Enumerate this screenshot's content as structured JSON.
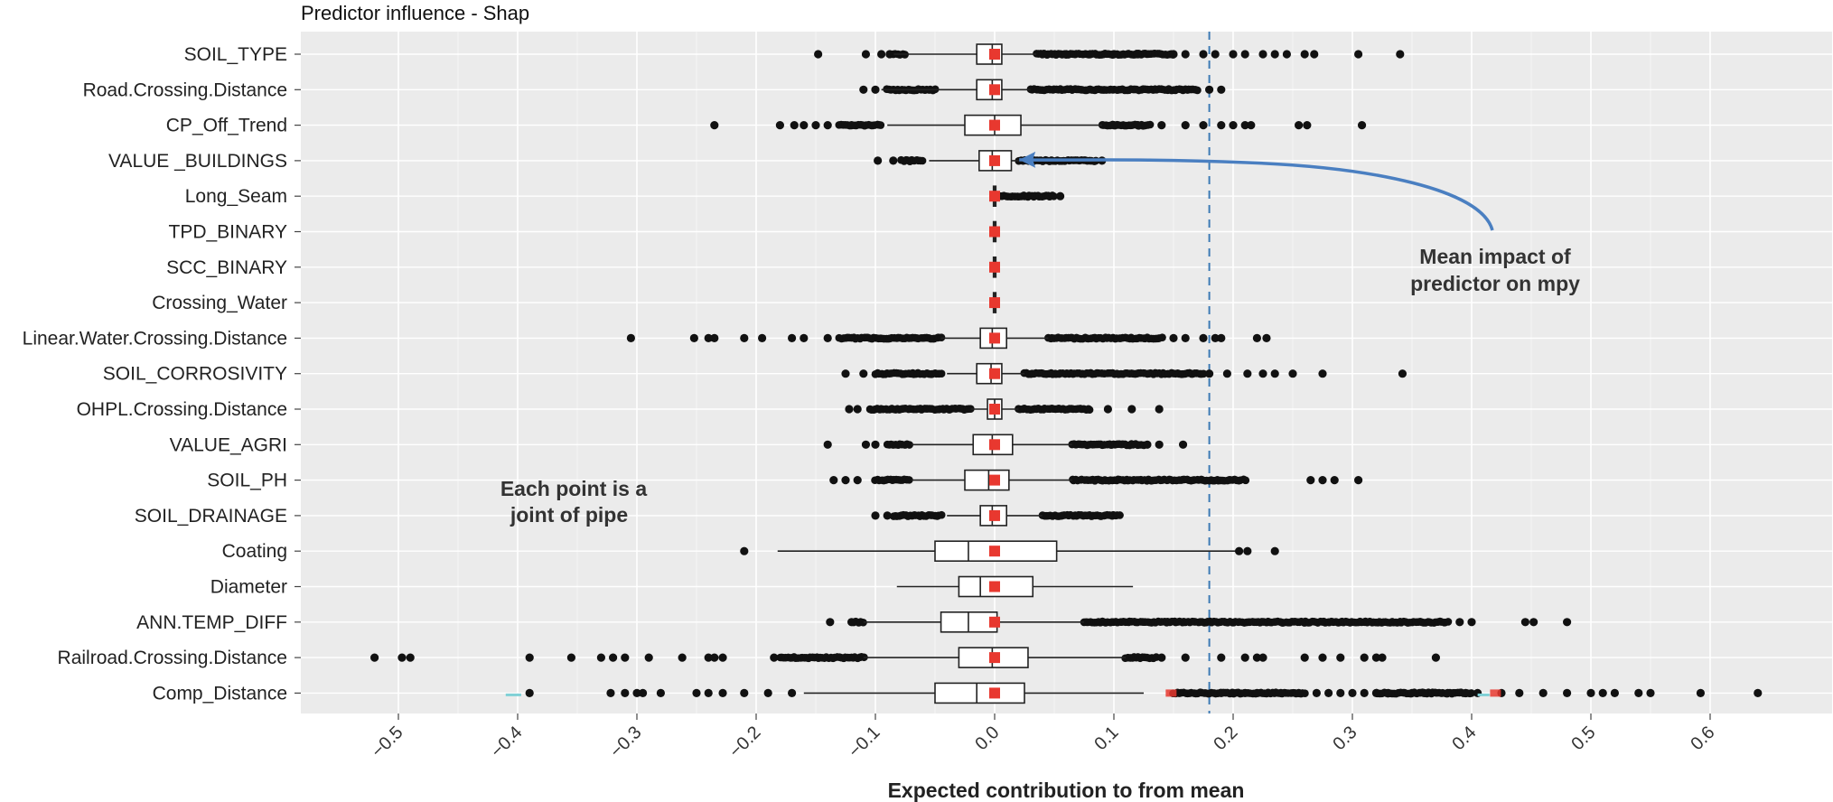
{
  "chart_data": {
    "type": "boxplot",
    "title": "Predictor influence - Shap",
    "xlabel": "Expected contribution to from mean",
    "ylabel": "",
    "xlim": [
      -0.58,
      0.7
    ],
    "xticks": [
      -0.5,
      -0.4,
      -0.3,
      -0.2,
      -0.1,
      0.0,
      0.1,
      0.2,
      0.3,
      0.4,
      0.5,
      0.6
    ],
    "xtick_labels": [
      "−0.5",
      "−0.4",
      "−0.3",
      "−0.2",
      "−0.1",
      "0.0",
      "0.1",
      "0.2",
      "0.3",
      "0.4",
      "0.5",
      "0.6"
    ],
    "reference_line": {
      "x": 0.18,
      "style": "dashed",
      "color": "#3d7ab5"
    },
    "annotations": [
      {
        "text": "Mean impact of predictor on mpy",
        "lines": [
          "Mean impact of",
          "predictor on mpy"
        ],
        "target_predictor": "VALUE _BUILDINGS",
        "target_x": 0.01
      },
      {
        "text": "Each point is a joint of pipe",
        "lines": [
          "Each point is a",
          "joint of pipe"
        ]
      }
    ],
    "colors": {
      "panel": "#ebebeb",
      "grid": "#ffffff",
      "box_fill": "#ffffff",
      "box_line": "#222222",
      "point": "#111111",
      "mean": "#e8382f",
      "arrow": "#4a7fc1",
      "ref_line": "#3d7ab5",
      "minor_point": "#7fd0d6"
    },
    "predictors": [
      {
        "name": "SOIL_TYPE",
        "q1": -0.015,
        "median": -0.002,
        "q3": 0.006,
        "whisker_low": -0.09,
        "whisker_high": 0.035,
        "mean": 0.0,
        "outliers": [
          -0.148,
          -0.108,
          -0.095,
          -0.088,
          0.04,
          0.06,
          0.08,
          0.1,
          0.12,
          0.15,
          0.16,
          0.175,
          0.185,
          0.2,
          0.21,
          0.225,
          0.235,
          0.245,
          0.26,
          0.268,
          0.305,
          0.34
        ],
        "dense": [
          [
            -0.085,
            -0.075
          ],
          [
            0.035,
            0.15
          ]
        ]
      },
      {
        "name": "Road.Crossing.Distance",
        "q1": -0.015,
        "median": -0.002,
        "q3": 0.006,
        "whisker_low": -0.095,
        "whisker_high": 0.03,
        "mean": 0.0,
        "outliers": [
          -0.11,
          -0.1,
          0.18,
          0.19
        ],
        "dense": [
          [
            -0.09,
            -0.05
          ],
          [
            0.03,
            0.17
          ]
        ]
      },
      {
        "name": "CP_Off_Trend",
        "q1": -0.025,
        "median": 0.0,
        "q3": 0.022,
        "whisker_low": -0.09,
        "whisker_high": 0.09,
        "mean": 0.0,
        "outliers": [
          -0.235,
          -0.18,
          -0.168,
          -0.16,
          -0.15,
          -0.14,
          -0.12,
          0.1,
          0.12,
          0.14,
          0.16,
          0.175,
          0.19,
          0.2,
          0.21,
          0.215,
          0.255,
          0.262,
          0.308
        ],
        "dense": [
          [
            -0.13,
            -0.095
          ],
          [
            0.09,
            0.13
          ]
        ]
      },
      {
        "name": "VALUE _BUILDINGS",
        "q1": -0.013,
        "median": -0.002,
        "q3": 0.014,
        "whisker_low": -0.055,
        "whisker_high": 0.09,
        "mean": 0.0,
        "outliers": [
          -0.098,
          -0.085,
          0.09
        ],
        "dense": [
          [
            -0.078,
            -0.06
          ],
          [
            0.02,
            0.085
          ]
        ]
      },
      {
        "name": "Long_Seam",
        "q1": -0.001,
        "median": 0.0,
        "q3": 0.001,
        "whisker_low": -0.002,
        "whisker_high": 0.002,
        "mean": 0.0,
        "outliers": [
          0.055
        ],
        "dense": [
          [
            0.003,
            0.05
          ]
        ]
      },
      {
        "name": "TPD_BINARY",
        "q1": -0.001,
        "median": 0.0,
        "q3": 0.001,
        "whisker_low": -0.001,
        "whisker_high": 0.001,
        "mean": 0.0,
        "outliers": [],
        "dense": []
      },
      {
        "name": "SCC_BINARY",
        "q1": -0.001,
        "median": 0.0,
        "q3": 0.001,
        "whisker_low": -0.001,
        "whisker_high": 0.001,
        "mean": 0.0,
        "outliers": [],
        "dense": []
      },
      {
        "name": "Crossing_Water",
        "q1": -0.001,
        "median": 0.0,
        "q3": 0.001,
        "whisker_low": -0.001,
        "whisker_high": 0.001,
        "mean": 0.0,
        "outliers": [],
        "dense": []
      },
      {
        "name": "Linear.Water.Crossing.Distance",
        "q1": -0.012,
        "median": -0.002,
        "q3": 0.01,
        "whisker_low": -0.045,
        "whisker_high": 0.045,
        "mean": 0.0,
        "outliers": [
          -0.305,
          -0.252,
          -0.24,
          -0.235,
          -0.21,
          -0.195,
          -0.17,
          -0.16,
          -0.14,
          0.15,
          0.16,
          0.175,
          0.185,
          0.19,
          0.22,
          0.228
        ],
        "dense": [
          [
            -0.13,
            -0.045
          ],
          [
            0.045,
            0.14
          ]
        ]
      },
      {
        "name": "SOIL_CORROSIVITY",
        "q1": -0.015,
        "median": -0.003,
        "q3": 0.006,
        "whisker_low": -0.04,
        "whisker_high": 0.025,
        "mean": 0.0,
        "outliers": [
          -0.125,
          -0.11,
          0.18,
          0.195,
          0.212,
          0.225,
          0.235,
          0.25,
          0.275,
          0.342
        ],
        "dense": [
          [
            -0.1,
            -0.045
          ],
          [
            0.025,
            0.175
          ]
        ]
      },
      {
        "name": "OHPL.Crossing.Distance",
        "q1": -0.006,
        "median": 0.0,
        "q3": 0.006,
        "whisker_low": -0.02,
        "whisker_high": 0.02,
        "mean": 0.0,
        "outliers": [
          -0.122,
          -0.115,
          0.095,
          0.115,
          0.138
        ],
        "dense": [
          [
            -0.105,
            -0.02
          ],
          [
            0.02,
            0.08
          ]
        ]
      },
      {
        "name": "VALUE_AGRI",
        "q1": -0.018,
        "median": -0.002,
        "q3": 0.015,
        "whisker_low": -0.07,
        "whisker_high": 0.065,
        "mean": 0.0,
        "outliers": [
          -0.14,
          -0.108,
          -0.1,
          0.128,
          0.138,
          0.158
        ],
        "dense": [
          [
            -0.09,
            -0.072
          ],
          [
            0.065,
            0.125
          ]
        ]
      },
      {
        "name": "SOIL_PH",
        "q1": -0.025,
        "median": -0.005,
        "q3": 0.012,
        "whisker_low": -0.07,
        "whisker_high": 0.065,
        "mean": 0.0,
        "outliers": [
          -0.135,
          -0.125,
          -0.115,
          0.265,
          0.275,
          0.285,
          0.305
        ],
        "dense": [
          [
            -0.1,
            -0.072
          ],
          [
            0.065,
            0.21
          ]
        ]
      },
      {
        "name": "SOIL_DRAINAGE",
        "q1": -0.012,
        "median": -0.002,
        "q3": 0.01,
        "whisker_low": -0.04,
        "whisker_high": 0.04,
        "mean": 0.0,
        "outliers": [
          -0.1,
          -0.09
        ],
        "dense": [
          [
            -0.085,
            -0.045
          ],
          [
            0.04,
            0.105
          ]
        ]
      },
      {
        "name": "Coating",
        "q1": -0.05,
        "median": -0.022,
        "q3": 0.052,
        "whisker_low": -0.182,
        "whisker_high": 0.205,
        "mean": 0.0,
        "outliers": [
          -0.21,
          0.205,
          0.212,
          0.235
        ],
        "dense": []
      },
      {
        "name": "Diameter",
        "q1": -0.03,
        "median": -0.012,
        "q3": 0.032,
        "whisker_low": -0.082,
        "whisker_high": 0.116,
        "mean": 0.0,
        "outliers": [],
        "dense": []
      },
      {
        "name": "ANN.TEMP_DIFF",
        "q1": -0.045,
        "median": -0.022,
        "q3": 0.002,
        "whisker_low": -0.11,
        "whisker_high": 0.075,
        "mean": 0.0,
        "outliers": [
          -0.138,
          -0.12,
          0.39,
          0.4,
          0.445,
          0.452,
          0.48
        ],
        "dense": [
          [
            -0.118,
            -0.11
          ],
          [
            0.075,
            0.38
          ]
        ]
      },
      {
        "name": "Railroad.Crossing.Distance",
        "q1": -0.03,
        "median": -0.002,
        "q3": 0.028,
        "whisker_low": -0.11,
        "whisker_high": 0.11,
        "mean": 0.0,
        "outliers": [
          -0.52,
          -0.497,
          -0.49,
          -0.39,
          -0.355,
          -0.33,
          -0.32,
          -0.31,
          -0.29,
          -0.262,
          -0.24,
          -0.235,
          -0.228,
          -0.185,
          0.14,
          0.16,
          0.19,
          0.21,
          0.22,
          0.225,
          0.26,
          0.275,
          0.29,
          0.31,
          0.32,
          0.325,
          0.37
        ],
        "dense": [
          [
            -0.18,
            -0.11
          ],
          [
            0.11,
            0.135
          ]
        ]
      },
      {
        "name": "Comp_Distance",
        "q1": -0.05,
        "median": -0.015,
        "q3": 0.025,
        "whisker_low": -0.16,
        "whisker_high": 0.125,
        "mean": 0.0,
        "outliers": [
          -0.39,
          -0.322,
          -0.31,
          -0.3,
          -0.295,
          -0.28,
          -0.25,
          -0.24,
          -0.228,
          -0.21,
          -0.19,
          -0.17,
          0.19,
          0.2,
          0.21,
          0.22,
          0.24,
          0.255,
          0.27,
          0.28,
          0.29,
          0.3,
          0.31,
          0.32,
          0.33,
          0.35,
          0.36,
          0.38,
          0.395,
          0.405,
          0.425,
          0.44,
          0.46,
          0.48,
          0.5,
          0.51,
          0.52,
          0.54,
          0.55,
          0.592,
          0.64
        ],
        "dense": [
          [
            0.15,
            0.26
          ],
          [
            0.32,
            0.4
          ]
        ],
        "extra_marks": [
          0.148,
          0.42
        ]
      }
    ]
  }
}
